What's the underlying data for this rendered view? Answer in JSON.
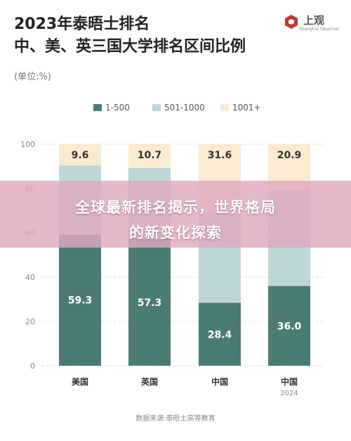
{
  "header": {
    "title_line1": "2023年泰晤士排名",
    "title_line2": "中、美、英三国大学排名区间比例",
    "unit": "(单位:%)"
  },
  "logo": {
    "name": "上观",
    "subtitle": "Shanghai Observer",
    "color": "#c0392b"
  },
  "banner": {
    "line1": "全球最新排名揭示，世界格局",
    "line2": "的新变化探索"
  },
  "source": "数据来源:泰晤士高等教育",
  "colors": {
    "s1": "#4a7c74",
    "s2": "#bed6d6",
    "s3": "#faebd0",
    "grid": "#dddddd",
    "axis_text": "#888888",
    "label_dark": "#333333",
    "label_light": "#ffffff"
  },
  "chart_data": {
    "type": "bar",
    "stacked": true,
    "categories": [
      "美国",
      "英国",
      "中国",
      "中国"
    ],
    "category_sublabels": [
      "",
      "",
      "",
      "2024"
    ],
    "series": [
      {
        "name": "1-500",
        "values": [
          59.3,
          57.3,
          28.4,
          36.0
        ],
        "labels": [
          "59.3",
          "57.3",
          "28.4",
          "36.0"
        ]
      },
      {
        "name": "501-1000",
        "values": [
          31.1,
          32.0,
          40.0,
          43.1
        ],
        "labels": [
          "",
          "",
          "",
          ""
        ]
      },
      {
        "name": "1001+",
        "values": [
          9.6,
          10.7,
          31.6,
          20.9
        ],
        "labels": [
          "9.6",
          "10.7",
          "31.6",
          "20.9"
        ]
      }
    ],
    "yticks": [
      "0",
      "20",
      "40",
      "60",
      "80",
      "100"
    ],
    "ylim": [
      0,
      100
    ],
    "grid": true,
    "legend_position": "top-center"
  }
}
